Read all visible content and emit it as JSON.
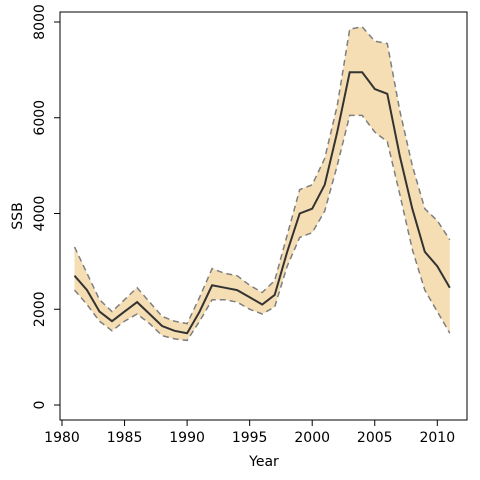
{
  "chart_data": {
    "type": "line",
    "title": "",
    "xlabel": "Year",
    "ylabel": "SSB",
    "xlim": [
      1980,
      2012
    ],
    "ylim": [
      0,
      8000
    ],
    "x_ticks": [
      1980,
      1985,
      1990,
      1995,
      2000,
      2005,
      2010
    ],
    "y_ticks": [
      0,
      2000,
      4000,
      6000,
      8000
    ],
    "grid": false,
    "legend": "none",
    "band_color": "#f5deb3",
    "bound_color": "#7f7f7f",
    "line_color": "#333333",
    "x": [
      1981,
      1982,
      1983,
      1984,
      1985,
      1986,
      1987,
      1988,
      1989,
      1990,
      1991,
      1992,
      1993,
      1994,
      1995,
      1996,
      1997,
      1998,
      1999,
      2000,
      2001,
      2002,
      2003,
      2004,
      2005,
      2006,
      2007,
      2008,
      2009,
      2010,
      2011
    ],
    "series": [
      {
        "values": [
          2700,
          2400,
          1950,
          1750,
          1950,
          2150,
          1900,
          1650,
          1550,
          1500,
          1950,
          2500,
          2450,
          2400,
          2250,
          2100,
          2300,
          3200,
          4000,
          4100,
          4600,
          5700,
          6950,
          6950,
          6600,
          6500,
          5200,
          4100,
          3200,
          2900,
          2450
        ]
      },
      {
        "values": [
          3300,
          2750,
          2200,
          1950,
          2200,
          2450,
          2150,
          1850,
          1750,
          1700,
          2250,
          2850,
          2750,
          2700,
          2500,
          2350,
          2600,
          3550,
          4500,
          4600,
          5150,
          6250,
          7850,
          7900,
          7600,
          7550,
          6150,
          5000,
          4100,
          3850,
          3450
        ]
      },
      {
        "values": [
          2400,
          2100,
          1750,
          1550,
          1750,
          1900,
          1700,
          1450,
          1380,
          1350,
          1750,
          2200,
          2200,
          2150,
          2000,
          1900,
          2050,
          2900,
          3500,
          3600,
          4050,
          5000,
          6050,
          6050,
          5700,
          5500,
          4400,
          3250,
          2400,
          1950,
          1500
        ]
      }
    ]
  }
}
